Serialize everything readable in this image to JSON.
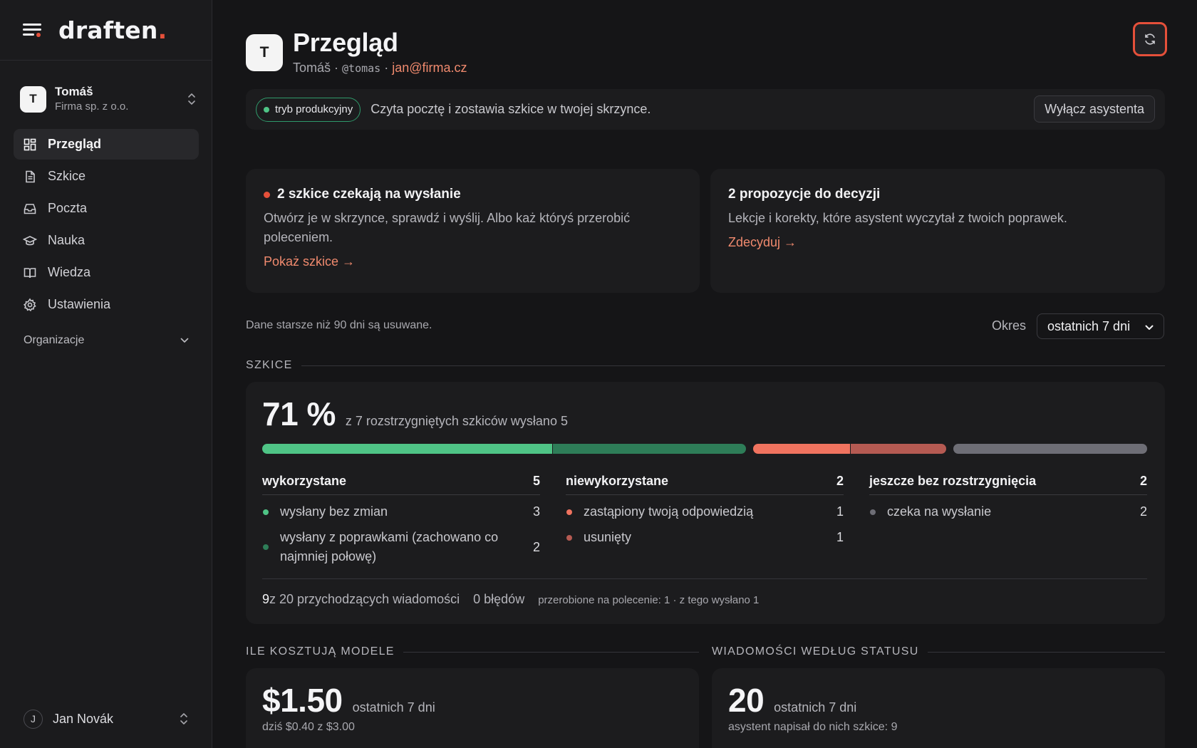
{
  "sidebar": {
    "logo_text": "draften",
    "logo_dot": ".",
    "org": {
      "avatar_letter": "T",
      "name": "Tomáš",
      "company": "Firma sp. z o.o."
    },
    "nav": [
      {
        "label": "Przegląd",
        "icon": "dashboard-icon",
        "active": true
      },
      {
        "label": "Szkice",
        "icon": "document-icon",
        "active": false
      },
      {
        "label": "Poczta",
        "icon": "inbox-icon",
        "active": false
      },
      {
        "label": "Nauka",
        "icon": "graduation-cap-icon",
        "active": false
      },
      {
        "label": "Wiedza",
        "icon": "book-icon",
        "active": false
      },
      {
        "label": "Ustawienia",
        "icon": "gear-icon",
        "active": false
      }
    ],
    "organizations_label": "Organizacje",
    "user": {
      "avatar_letter": "J",
      "name": "Jan Novák"
    }
  },
  "header": {
    "avatar_letter": "T",
    "title": "Przegląd",
    "user_name": "Tomáš",
    "sep1": " · ",
    "handle": "@tomas",
    "sep2": " · ",
    "email": "jan@firma.cz"
  },
  "prod_bar": {
    "mode": "tryb produkcyjny",
    "text": "Czyta pocztę i zostawia szkice w twojej skrzynce.",
    "disable_button": "Wyłącz asystenta"
  },
  "alerts": {
    "drafts": {
      "title": "2 szkice czekają na wysłanie",
      "body": "Otwórz je w skrzynce, sprawdź i wyślij. Albo każ któryś przerobić poleceniem.",
      "link": "Pokaż szkice →"
    },
    "proposals": {
      "title": "2 propozycje do decyzji",
      "body": "Lekcje i korekty, które asystent wyczytał z twoich poprawek.",
      "link": "Zdecyduj →"
    }
  },
  "retention_note": "Dane starsze niż 90 dni są usuwane.",
  "period": {
    "label": "Okres",
    "selected": "ostatnich 7 dni"
  },
  "drafts_section": {
    "heading": "SZKICE",
    "percent": "71 %",
    "percent_desc": "z 7 rozstrzygniętych szkiców wysłano 5",
    "bar": [
      {
        "key": "sent_unchanged",
        "value": 3,
        "color": "#4fc486"
      },
      {
        "key": "sent_edited",
        "value": 2,
        "color": "#2e7d58"
      },
      {
        "key": "replaced",
        "value": 1,
        "color": "#f0735f"
      },
      {
        "key": "deleted",
        "value": 1,
        "color": "#b55a52"
      },
      {
        "key": "pending",
        "value": 2,
        "color": "#6e6e76"
      }
    ],
    "columns": [
      {
        "title": "wykorzystane",
        "total": "5",
        "rows": [
          {
            "label": "wysłany bez zmian",
            "value": "3",
            "color": "#4fc486"
          },
          {
            "label": "wysłany z poprawkami (zachowano co najmniej połowę)",
            "value": "2",
            "color": "#2e7d58"
          }
        ]
      },
      {
        "title": "niewykorzystane",
        "total": "2",
        "rows": [
          {
            "label": "zastąpiony twoją odpowiedzią",
            "value": "1",
            "color": "#f0735f"
          },
          {
            "label": "usunięty",
            "value": "1",
            "color": "#b55a52"
          }
        ]
      },
      {
        "title": "jeszcze bez rozstrzygnięcia",
        "total": "2",
        "rows": [
          {
            "label": "czeka na wysłanie",
            "value": "2",
            "color": "#6e6e76"
          }
        ]
      }
    ],
    "footer": {
      "incoming_count": "9",
      "incoming_text": " z 20 przychodzących wiadomości",
      "errors": "0 błędów",
      "reworked": "przerobione na polecenie: 1 · z tego wysłano 1"
    }
  },
  "costs_section": {
    "heading": "ILE KOSZTUJĄ MODELE",
    "amount": "$1.50",
    "period": "ostatnich 7 dni",
    "today": "dziś $0.40 z $3.00"
  },
  "status_section": {
    "heading": "WIADOMOŚCI WEDŁUG STATUSU",
    "count": "20",
    "period": "ostatnich 7 dni",
    "note": "asystent napisał do nich szkice: 9"
  }
}
